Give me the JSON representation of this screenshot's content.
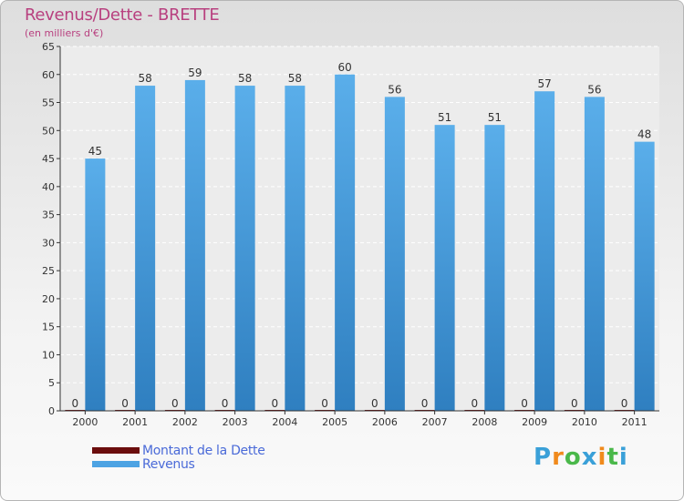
{
  "header": {
    "title": "Revenus/Dette - BRETTE",
    "subtitle": "(en milliers d'€)"
  },
  "colors": {
    "title": "#b8407f",
    "revenus": "#4da3e3",
    "dette": "#6b0d0d",
    "legend_text": "#4a6ad8"
  },
  "chart_data": {
    "type": "bar",
    "categories": [
      "2000",
      "2001",
      "2002",
      "2003",
      "2004",
      "2005",
      "2006",
      "2007",
      "2008",
      "2009",
      "2010",
      "2011"
    ],
    "series": [
      {
        "name": "Montant de la Dette",
        "values": [
          0,
          0,
          0,
          0,
          0,
          0,
          0,
          0,
          0,
          0,
          0,
          0
        ]
      },
      {
        "name": "Revenus",
        "values": [
          45,
          58,
          59,
          58,
          58,
          60,
          56,
          51,
          51,
          57,
          56,
          48
        ]
      }
    ],
    "ylim": [
      0,
      65
    ],
    "yticks": [
      0,
      5,
      10,
      15,
      20,
      25,
      30,
      35,
      40,
      45,
      50,
      55,
      60,
      65
    ],
    "grid": true,
    "legend": "bottom-left"
  },
  "legend": {
    "items": [
      {
        "label": "Montant de la Dette",
        "color": "#6b0d0d"
      },
      {
        "label": "Revenus",
        "color": "#4da3e3"
      }
    ]
  },
  "logo": {
    "text": "Proxiti",
    "letter_colors": [
      "#3aa0d8",
      "#f08a1c",
      "#4ab84a",
      "#3aa0d8",
      "#f08a1c",
      "#4ab84a",
      "#3aa0d8"
    ]
  }
}
